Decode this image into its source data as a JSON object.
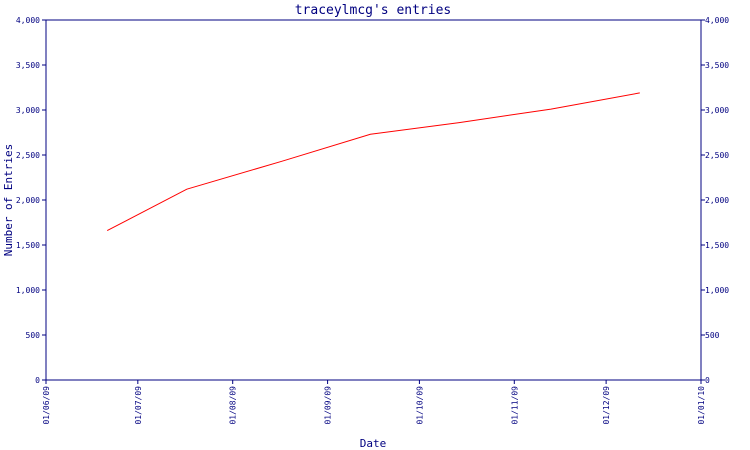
{
  "chart_data": {
    "type": "line",
    "title": "traceylmcg's entries",
    "xlabel": "Date",
    "ylabel": "Number of Entries",
    "x_ticks": [
      "01/06/09",
      "01/07/09",
      "01/08/09",
      "01/09/09",
      "01/10/09",
      "01/11/09",
      "01/12/09",
      "01/01/10"
    ],
    "xlim": [
      "2009-06-01",
      "2010-01-01"
    ],
    "ylim": [
      0,
      4000
    ],
    "y_ticks": [
      0,
      500,
      1000,
      1500,
      2000,
      2500,
      3000,
      3500,
      4000
    ],
    "y_tick_labels": [
      "0",
      "500",
      "1,000",
      "1,500",
      "2,000",
      "2,500",
      "3,000",
      "3,500",
      "4,000"
    ],
    "grid": false,
    "series": [
      {
        "color": "#ff0000",
        "points": [
          {
            "x": "2009-06-21",
            "y": 1660
          },
          {
            "x": "2009-07-17",
            "y": 2120
          },
          {
            "x": "2009-08-17",
            "y": 2430
          },
          {
            "x": "2009-09-15",
            "y": 2730
          },
          {
            "x": "2009-10-14",
            "y": 2860
          },
          {
            "x": "2009-11-13",
            "y": 3010
          },
          {
            "x": "2009-12-12",
            "y": 3190
          }
        ]
      }
    ],
    "colors": {
      "axis": "#000080",
      "text": "#000080",
      "line": "#ff0000",
      "background": "#ffffff"
    }
  }
}
